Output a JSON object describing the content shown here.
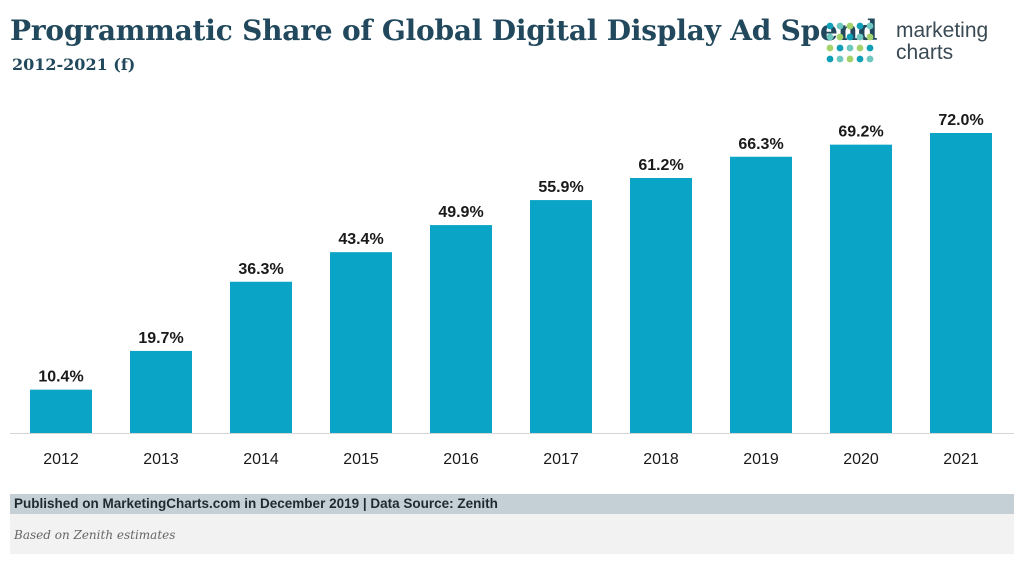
{
  "header": {
    "title": "Programmatic Share of Global Digital Display Ad Spend",
    "subtitle": "2012-2021 (f)"
  },
  "logo": {
    "line1": "marketing",
    "line2": "charts",
    "dot_colors": [
      "#0f9fb6",
      "#6ec8bf",
      "#a4d36e"
    ]
  },
  "chart_data": {
    "type": "bar",
    "title": "Programmatic Share of Global Digital Display Ad Spend",
    "subtitle": "2012-2021 (f)",
    "categories": [
      "2012",
      "2013",
      "2014",
      "2015",
      "2016",
      "2017",
      "2018",
      "2019",
      "2020",
      "2021"
    ],
    "values": [
      10.4,
      19.7,
      36.3,
      43.4,
      49.9,
      55.9,
      61.2,
      66.3,
      69.2,
      72.0
    ],
    "value_labels": [
      "10.4%",
      "19.7%",
      "36.3%",
      "43.4%",
      "49.9%",
      "55.9%",
      "61.2%",
      "66.3%",
      "69.2%",
      "72.0%"
    ],
    "ylim": [
      0,
      72
    ],
    "grid": false,
    "bar_color": "#0aa5c6"
  },
  "footer": {
    "source": "Published on MarketingCharts.com in December 2019 | Data Source: Zenith",
    "note": "Based on Zenith estimates"
  }
}
